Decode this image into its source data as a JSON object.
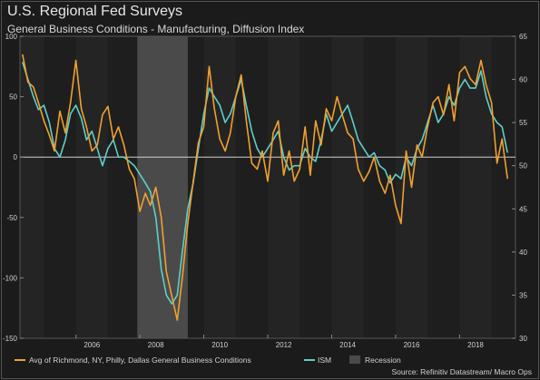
{
  "title": "U.S. Regional Fed Surveys",
  "subtitle": "General Business Conditions - Manufacturing, Diffusion Index",
  "source": "Source: Refinitiv Datastream/ Macro Ops",
  "colors": {
    "series1": "#f0a030",
    "series2": "#5ecfc9",
    "recession": "#4a4a4a",
    "background": "#1b1b1b",
    "text": "#d0d0d0"
  },
  "chart_data": {
    "type": "line",
    "x_range": [
      2004.25,
      2019.75
    ],
    "x_ticks": [
      "2006",
      "2008",
      "2010",
      "2012",
      "2014",
      "2016",
      "2018"
    ],
    "left_axis": {
      "ylim": [
        -150,
        100
      ],
      "ticks": [
        "100",
        "50",
        "0",
        "-50",
        "-100",
        "-150"
      ]
    },
    "right_axis": {
      "ylim": [
        30,
        65
      ],
      "ticks": [
        "65",
        "60",
        "55",
        "50",
        "45",
        "40",
        "35",
        "30"
      ]
    },
    "recession": [
      2007.92,
      2009.5
    ],
    "legend": [
      "Avg of Richmond, NY, Philly, Dallas General Business Conditions",
      "ISM",
      "Recession"
    ],
    "series": [
      {
        "name": "Avg of Richmond, NY, Philly, Dallas General Business Conditions",
        "axis": "left",
        "x": [
          2004.33,
          2004.5,
          2004.67,
          2004.83,
          2005.0,
          2005.17,
          2005.33,
          2005.5,
          2005.67,
          2005.83,
          2006.0,
          2006.17,
          2006.33,
          2006.5,
          2006.67,
          2006.83,
          2007.0,
          2007.17,
          2007.33,
          2007.5,
          2007.67,
          2007.83,
          2008.0,
          2008.17,
          2008.33,
          2008.5,
          2008.67,
          2008.83,
          2009.0,
          2009.17,
          2009.33,
          2009.5,
          2009.67,
          2009.83,
          2010.0,
          2010.17,
          2010.33,
          2010.5,
          2010.67,
          2010.83,
          2011.0,
          2011.17,
          2011.33,
          2011.5,
          2011.67,
          2011.83,
          2012.0,
          2012.17,
          2012.33,
          2012.5,
          2012.67,
          2012.83,
          2013.0,
          2013.17,
          2013.33,
          2013.5,
          2013.67,
          2013.83,
          2014.0,
          2014.17,
          2014.33,
          2014.5,
          2014.67,
          2014.83,
          2015.0,
          2015.17,
          2015.33,
          2015.5,
          2015.67,
          2015.83,
          2016.0,
          2016.17,
          2016.33,
          2016.5,
          2016.67,
          2016.83,
          2017.0,
          2017.17,
          2017.33,
          2017.5,
          2017.67,
          2017.83,
          2018.0,
          2018.17,
          2018.33,
          2018.5,
          2018.67,
          2018.83,
          2019.0,
          2019.17,
          2019.33,
          2019.5
        ],
        "values": [
          85,
          62,
          58,
          45,
          30,
          18,
          5,
          38,
          20,
          45,
          80,
          40,
          25,
          5,
          10,
          35,
          42,
          15,
          25,
          10,
          -10,
          -18,
          -45,
          -30,
          -40,
          -25,
          -50,
          -95,
          -115,
          -135,
          -100,
          -55,
          -20,
          12,
          25,
          75,
          40,
          15,
          5,
          20,
          50,
          68,
          30,
          -5,
          -10,
          5,
          -20,
          20,
          30,
          -15,
          5,
          -20,
          -10,
          25,
          -15,
          30,
          10,
          40,
          30,
          50,
          35,
          20,
          15,
          -10,
          -20,
          -12,
          0,
          -20,
          -30,
          -15,
          -40,
          -55,
          5,
          -25,
          10,
          0,
          25,
          45,
          50,
          35,
          60,
          30,
          70,
          75,
          65,
          60,
          80,
          60,
          45,
          -5,
          15,
          -18
        ]
      },
      {
        "name": "ISM",
        "axis": "right",
        "x": [
          2004.33,
          2004.5,
          2004.67,
          2004.83,
          2005.0,
          2005.17,
          2005.33,
          2005.5,
          2005.67,
          2005.83,
          2006.0,
          2006.17,
          2006.33,
          2006.5,
          2006.67,
          2006.83,
          2007.0,
          2007.17,
          2007.33,
          2007.5,
          2007.67,
          2007.83,
          2008.0,
          2008.17,
          2008.33,
          2008.5,
          2008.67,
          2008.83,
          2009.0,
          2009.17,
          2009.33,
          2009.5,
          2009.67,
          2009.83,
          2010.0,
          2010.17,
          2010.33,
          2010.5,
          2010.67,
          2010.83,
          2011.0,
          2011.17,
          2011.33,
          2011.5,
          2011.67,
          2011.83,
          2012.0,
          2012.17,
          2012.33,
          2012.5,
          2012.67,
          2012.83,
          2013.0,
          2013.17,
          2013.33,
          2013.5,
          2013.67,
          2013.83,
          2014.0,
          2014.17,
          2014.33,
          2014.5,
          2014.67,
          2014.83,
          2015.0,
          2015.17,
          2015.33,
          2015.5,
          2015.67,
          2015.83,
          2016.0,
          2016.17,
          2016.33,
          2016.5,
          2016.67,
          2016.83,
          2017.0,
          2017.17,
          2017.33,
          2017.5,
          2017.67,
          2017.83,
          2018.0,
          2018.17,
          2018.33,
          2018.5,
          2018.67,
          2018.83,
          2019.0,
          2019.17,
          2019.33,
          2019.5
        ],
        "values": [
          62,
          60,
          58,
          56.5,
          57,
          55,
          52,
          51,
          53,
          56,
          57,
          55.5,
          53,
          54,
          52,
          50,
          52,
          53,
          51,
          51,
          50.5,
          50,
          49,
          48,
          47,
          44,
          38,
          35,
          34,
          35,
          40,
          45,
          48,
          52,
          56,
          59,
          58,
          57,
          55,
          56,
          58,
          60,
          57,
          54,
          52,
          51,
          52,
          53,
          54,
          51,
          49.5,
          50,
          50,
          52,
          51,
          50.5,
          53,
          56,
          54,
          55,
          56,
          57,
          55,
          53,
          52,
          51,
          51.5,
          50,
          49.5,
          48,
          49,
          48.5,
          51,
          50,
          52,
          53,
          55,
          57,
          55,
          56,
          58,
          57,
          59,
          60,
          59,
          59,
          61,
          58,
          56,
          55,
          54.5,
          51.5
        ]
      }
    ]
  }
}
